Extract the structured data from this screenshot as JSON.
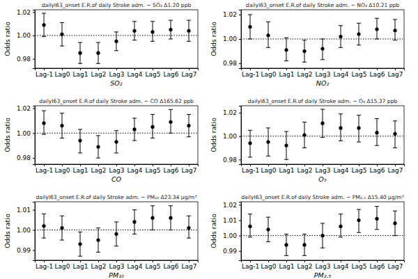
{
  "chart_data": [
    {
      "type": "errorbar",
      "title": "dailyI63_onset E.R.of daily Stroke adm. ~ SO₂ Δ1.20 ppb",
      "x_label": "SO₂",
      "y_label": "Odds ratio",
      "categories": [
        "Lag-1",
        "Lag0",
        "Lag1",
        "Lag2",
        "Lag3",
        "Lag4",
        "Lag5",
        "Lag6",
        "Lag7"
      ],
      "values": [
        1.009,
        1.001,
        0.985,
        0.985,
        0.995,
        1.004,
        1.003,
        1.005,
        1.004
      ],
      "lower": [
        0.999,
        0.991,
        0.976,
        0.976,
        0.987,
        0.996,
        0.995,
        0.997,
        0.995
      ],
      "upper": [
        1.019,
        1.011,
        0.994,
        0.994,
        1.003,
        1.012,
        1.012,
        1.013,
        1.013
      ],
      "reference_line": 1,
      "color": "#000000",
      "marker": "circle",
      "ylim": [
        0.972,
        1.022
      ],
      "yticks": [
        0.98,
        {
          "value": 1,
          "label": "1.00"
        },
        1.02
      ]
    },
    {
      "type": "errorbar",
      "title": "dailyI63_onset E.R.of daily Stroke adm. ~ NO₂ Δ10.21 ppb",
      "x_label": "NO₂",
      "y_label": "Odds ratio",
      "categories": [
        "Lag-1",
        "Lag0",
        "Lag1",
        "Lag2",
        "Lag3",
        "Lag4",
        "Lag5",
        "Lag6",
        "Lag7"
      ],
      "values": [
        1.01,
        1.003,
        0.991,
        0.99,
        0.992,
        1.002,
        1.004,
        1.008,
        1.007
      ],
      "lower": [
        1.0,
        0.993,
        0.982,
        0.981,
        0.983,
        0.993,
        0.995,
        1.0,
        0.999
      ],
      "upper": [
        1.02,
        1.014,
        1.001,
        0.999,
        1.0,
        1.011,
        1.013,
        1.017,
        1.016
      ],
      "reference_line": 1,
      "color": "#000000",
      "marker": "circle",
      "ylim": [
        0.976,
        1.024
      ],
      "yticks": [
        0.98,
        {
          "value": 1,
          "label": "1.00"
        },
        1.02
      ]
    },
    {
      "type": "errorbar",
      "title": "dailyI63_onset E.R.of daily Stroke adm. ~ CO Δ165.62 ppb",
      "x_label": "CO",
      "y_label": "Odds ratio",
      "categories": [
        "Lag-1",
        "Lag0",
        "Lag1",
        "Lag2",
        "Lag3",
        "Lag4",
        "Lag5",
        "Lag6",
        "Lag7"
      ],
      "values": [
        1.008,
        1.006,
        0.994,
        0.989,
        0.993,
        1.003,
        1.005,
        1.009,
        1.006
      ],
      "lower": [
        0.999,
        0.996,
        0.984,
        0.98,
        0.984,
        0.994,
        0.996,
        1.0,
        0.997
      ],
      "upper": [
        1.018,
        1.016,
        1.003,
        0.998,
        1.002,
        1.012,
        1.015,
        1.019,
        1.015
      ],
      "reference_line": 1,
      "color": "#000000",
      "marker": "circle",
      "ylim": [
        0.975,
        1.022
      ],
      "yticks": [
        0.98,
        {
          "value": 1,
          "label": "1.00"
        },
        1.02
      ]
    },
    {
      "type": "errorbar",
      "title": "dailyI63_onset E.R.of daily Stroke adm. ~ O₃ Δ15.37 ppb",
      "x_label": "O₃",
      "y_label": "Odds ratio",
      "categories": [
        "Lag-1",
        "Lag0",
        "Lag1",
        "Lag2",
        "Lag3",
        "Lag4",
        "Lag5",
        "Lag6",
        "Lag7"
      ],
      "values": [
        0.994,
        0.995,
        0.992,
        1.001,
        1.011,
        1.007,
        1.007,
        1.003,
        1.002
      ],
      "lower": [
        0.982,
        0.983,
        0.98,
        0.99,
        0.999,
        0.996,
        0.995,
        0.992,
        0.99
      ],
      "upper": [
        1.005,
        1.007,
        1.004,
        1.012,
        1.023,
        1.019,
        1.018,
        1.015,
        1.013
      ],
      "reference_line": 1,
      "color": "#000000",
      "marker": "circle",
      "ylim": [
        0.976,
        1.026
      ],
      "yticks": [
        0.98,
        {
          "value": 1,
          "label": "1.00"
        },
        1.02
      ]
    },
    {
      "type": "errorbar",
      "title": "dailyI63_onset E.R.of daily Stroke adm. ~ PM₁₀ Δ23.34 μg/m³",
      "x_label": "PM₁₀",
      "y_label": "Odds ratio",
      "categories": [
        "Lag-1",
        "Lag0",
        "Lag1",
        "Lag2",
        "Lag3",
        "Lag4",
        "Lag5",
        "Lag6",
        "Lag7"
      ],
      "values": [
        1.002,
        1.001,
        0.993,
        0.995,
        0.998,
        1.004,
        1.006,
        1.006,
        1.001
      ],
      "lower": [
        0.996,
        0.995,
        0.987,
        0.989,
        0.992,
        0.998,
        1.0,
        1.0,
        0.996
      ],
      "upper": [
        1.008,
        1.007,
        0.999,
        1.001,
        1.004,
        1.01,
        1.012,
        1.012,
        1.007
      ],
      "reference_line": 1,
      "color": "#000000",
      "marker": "circle",
      "ylim": [
        0.985,
        1.014
      ],
      "yticks": [
        0.99,
        {
          "value": 1,
          "label": "1.00"
        },
        1.01
      ]
    },
    {
      "type": "errorbar",
      "title": "dailyI63_onset E.R.of daily Stroke adm. ~ PM₂.₅ Δ15.40 μg/m³",
      "x_label": "PM₂.₅",
      "y_label": "Odds ratio",
      "categories": [
        "Lag-1",
        "Lag0",
        "Lag1",
        "Lag2",
        "Lag3",
        "Lag4",
        "Lag5",
        "Lag6",
        "Lag7"
      ],
      "values": [
        1.006,
        1.004,
        0.994,
        0.994,
        1.0,
        1.006,
        1.01,
        1.011,
        1.008
      ],
      "lower": [
        0.999,
        0.996,
        0.987,
        0.987,
        0.992,
        0.999,
        1.002,
        1.004,
        1.0
      ],
      "upper": [
        1.014,
        1.012,
        1.001,
        1.001,
        1.008,
        1.014,
        1.017,
        1.019,
        1.016
      ],
      "reference_line": 1,
      "color": "#000000",
      "marker": "circle",
      "ylim": [
        0.984,
        1.022
      ],
      "yticks": [
        0.99,
        {
          "value": 1,
          "label": "1.00"
        },
        1.01,
        1.02
      ]
    }
  ]
}
